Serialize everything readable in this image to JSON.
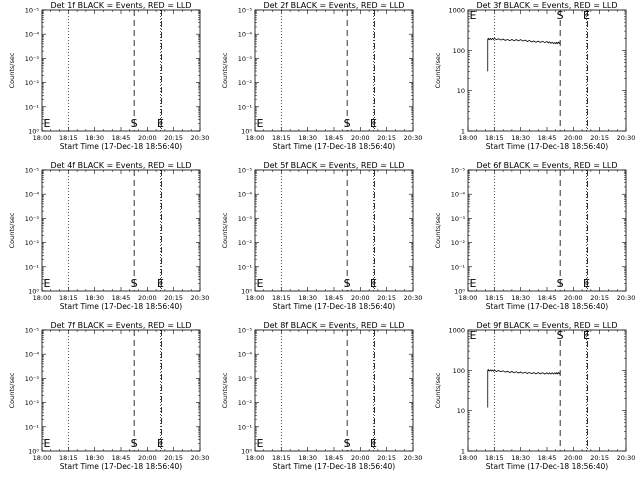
{
  "chart_data": [
    {
      "type": "line",
      "title": "Det 1f BLACK = Events, RED = LLD",
      "xlabel": "Start Time (17-Dec-18 18:56:40)",
      "ylabel": "Counts/sec",
      "yscale": "log",
      "yticks": [
        "10⁰",
        "10⁻¹",
        "10⁻²",
        "10⁻³",
        "10⁻⁴",
        "10⁻⁵"
      ],
      "xticks": [
        "18:00",
        "18:15",
        "18:30",
        "18:45",
        "20:00",
        "20:15",
        "20:30"
      ],
      "markers": [
        {
          "label": "E",
          "tick": 0
        },
        {
          "label": "S",
          "tick": 3.5
        },
        {
          "label": "E",
          "tick": 4.5
        }
      ],
      "series": []
    },
    {
      "type": "line",
      "title": "Det 2f BLACK = Events, RED = LLD",
      "xlabel": "Start Time (17-Dec-18 18:56:40)",
      "ylabel": "Counts/sec",
      "yscale": "log",
      "yticks": [
        "10⁰",
        "10⁻¹",
        "10⁻²",
        "10⁻³",
        "10⁻⁴",
        "10⁻⁵"
      ],
      "xticks": [
        "18:00",
        "18:15",
        "18:30",
        "18:45",
        "20:00",
        "20:15",
        "20:30"
      ],
      "markers": [
        {
          "label": "E",
          "tick": 0
        },
        {
          "label": "S",
          "tick": 3.5
        },
        {
          "label": "E",
          "tick": 4.5
        }
      ],
      "series": []
    },
    {
      "type": "line",
      "title": "Det 3f BLACK = Events, RED = LLD",
      "xlabel": "Start Time (17-Dec-18 18:56:40)",
      "ylabel": "Counts/sec",
      "yscale": "log",
      "yticks": [
        "1",
        "10",
        "100",
        "1000"
      ],
      "xticks": [
        "18:00",
        "18:15",
        "18:30",
        "18:45",
        "20:00",
        "20:15",
        "20:30"
      ],
      "markers": [
        {
          "label": "E",
          "tick": 0
        },
        {
          "label": "S",
          "tick": 3.5
        },
        {
          "label": "E",
          "tick": 4.5
        }
      ],
      "series": [
        {
          "x": [
            0.75,
            0.77,
            1.0,
            1.5,
            2.0,
            2.5,
            3.0,
            3.3,
            3.5
          ],
          "y": [
            190,
            190,
            192,
            180,
            178,
            165,
            160,
            150,
            155
          ],
          "start_y": 30
        }
      ]
    },
    {
      "type": "line",
      "title": "Det 4f BLACK = Events, RED = LLD",
      "xlabel": "Start Time (17-Dec-18 18:56:40)",
      "ylabel": "Counts/sec",
      "yscale": "log",
      "yticks": [
        "10⁰",
        "10⁻¹",
        "10⁻²",
        "10⁻³",
        "10⁻⁴",
        "10⁻⁵"
      ],
      "xticks": [
        "18:00",
        "18:15",
        "18:30",
        "18:45",
        "20:00",
        "20:15",
        "20:30"
      ],
      "markers": [
        {
          "label": "E",
          "tick": 0
        },
        {
          "label": "S",
          "tick": 3.5
        },
        {
          "label": "E",
          "tick": 4.5
        }
      ],
      "series": []
    },
    {
      "type": "line",
      "title": "Det 5f BLACK = Events, RED = LLD",
      "xlabel": "Start Time (17-Dec-18 18:56:40)",
      "ylabel": "Counts/sec",
      "yscale": "log",
      "yticks": [
        "10⁰",
        "10⁻¹",
        "10⁻²",
        "10⁻³",
        "10⁻⁴",
        "10⁻⁵"
      ],
      "xticks": [
        "18:00",
        "18:15",
        "18:30",
        "18:45",
        "20:00",
        "20:15",
        "20:30"
      ],
      "markers": [
        {
          "label": "E",
          "tick": 0
        },
        {
          "label": "S",
          "tick": 3.5
        },
        {
          "label": "E",
          "tick": 4.5
        }
      ],
      "series": []
    },
    {
      "type": "line",
      "title": "Det 6f BLACK = Events, RED = LLD",
      "xlabel": "Start Time (17-Dec-18 18:56:40)",
      "ylabel": "Counts/sec",
      "yscale": "log",
      "yticks": [
        "10⁰",
        "10⁻¹",
        "10⁻²",
        "10⁻³",
        "10⁻⁴",
        "10⁻⁵"
      ],
      "xticks": [
        "18:00",
        "18:15",
        "18:30",
        "18:45",
        "20:00",
        "20:15",
        "20:30"
      ],
      "markers": [
        {
          "label": "E",
          "tick": 0
        },
        {
          "label": "S",
          "tick": 3.5
        },
        {
          "label": "E",
          "tick": 4.5
        }
      ],
      "series": []
    },
    {
      "type": "line",
      "title": "Det 7f BLACK = Events, RED = LLD",
      "xlabel": "Start Time (17-Dec-18 18:56:40)",
      "ylabel": "Counts/sec",
      "yscale": "log",
      "yticks": [
        "10⁰",
        "10⁻¹",
        "10⁻²",
        "10⁻³",
        "10⁻⁴",
        "10⁻⁵"
      ],
      "xticks": [
        "18:00",
        "18:15",
        "18:30",
        "18:45",
        "20:00",
        "20:15",
        "20:30"
      ],
      "markers": [
        {
          "label": "E",
          "tick": 0
        },
        {
          "label": "S",
          "tick": 3.5
        },
        {
          "label": "E",
          "tick": 4.5
        }
      ],
      "series": []
    },
    {
      "type": "line",
      "title": "Det 8f BLACK = Events, RED = LLD",
      "xlabel": "Start Time (17-Dec-18 18:56:40)",
      "ylabel": "Counts/sec",
      "yscale": "log",
      "yticks": [
        "10⁰",
        "10⁻¹",
        "10⁻²",
        "10⁻³",
        "10⁻⁴",
        "10⁻⁵"
      ],
      "xticks": [
        "18:00",
        "18:15",
        "18:30",
        "18:45",
        "20:00",
        "20:15",
        "20:30"
      ],
      "markers": [
        {
          "label": "E",
          "tick": 0
        },
        {
          "label": "S",
          "tick": 3.5
        },
        {
          "label": "E",
          "tick": 4.5
        }
      ],
      "series": []
    },
    {
      "type": "line",
      "title": "Det 9f BLACK = Events, RED = LLD",
      "xlabel": "Start Time (17-Dec-18 18:56:40)",
      "ylabel": "Counts/sec",
      "yscale": "log",
      "yticks": [
        "1",
        "10",
        "100",
        "1000"
      ],
      "xticks": [
        "18:00",
        "18:15",
        "18:30",
        "18:45",
        "20:00",
        "20:15",
        "20:30"
      ],
      "markers": [
        {
          "label": "E",
          "tick": 0
        },
        {
          "label": "S",
          "tick": 3.5
        },
        {
          "label": "E",
          "tick": 4.5
        }
      ],
      "series": [
        {
          "x": [
            0.75,
            0.77,
            1.0,
            1.5,
            2.0,
            2.5,
            3.0,
            3.3,
            3.5
          ],
          "y": [
            100,
            100,
            98,
            92,
            88,
            85,
            84,
            84,
            86
          ],
          "start_y": 12
        }
      ]
    }
  ]
}
